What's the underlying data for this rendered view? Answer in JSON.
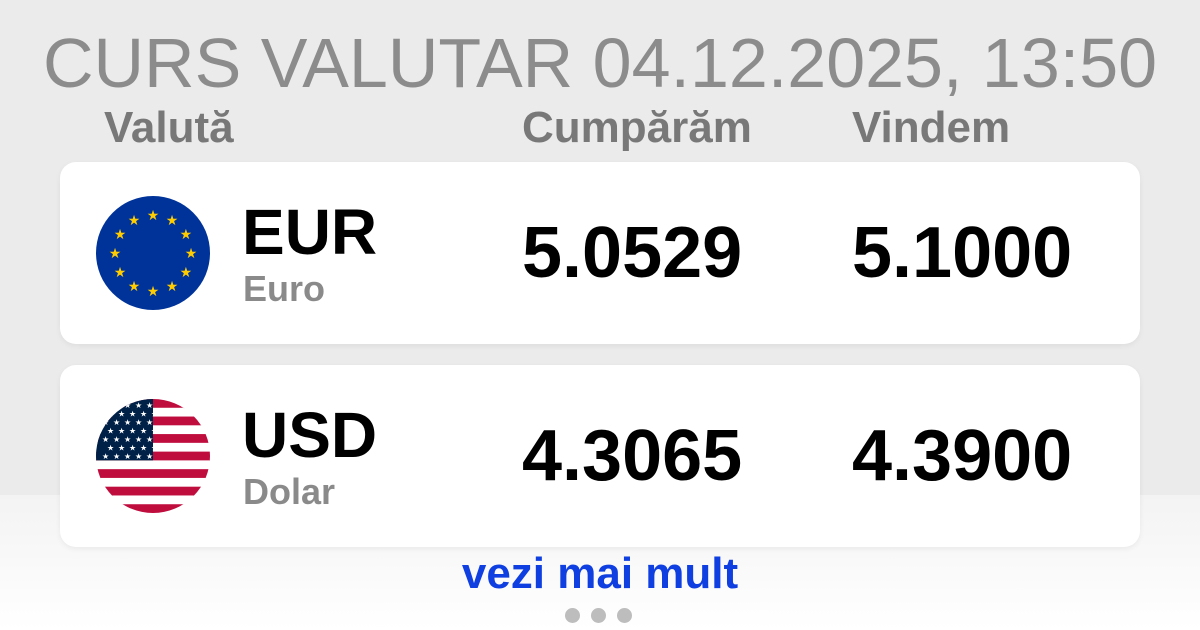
{
  "title": "CURS VALUTAR 04.12.2025, 13:50",
  "headers": {
    "currency": "Valută",
    "buy": "Cumpărăm",
    "sell": "Vindem"
  },
  "rates": [
    {
      "code": "EUR",
      "name": "Euro",
      "buy": "5.0529",
      "sell": "5.1000",
      "flag": "eu-flag-icon"
    },
    {
      "code": "USD",
      "name": "Dolar",
      "buy": "4.3065",
      "sell": "4.3900",
      "flag": "us-flag-icon"
    }
  ],
  "more_link": "vezi mai mult",
  "colors": {
    "link": "#0f3fe0",
    "eu_blue": "#003399",
    "eu_star": "#ffcc00",
    "us_red": "#bf0d3e",
    "us_blue": "#002147"
  }
}
